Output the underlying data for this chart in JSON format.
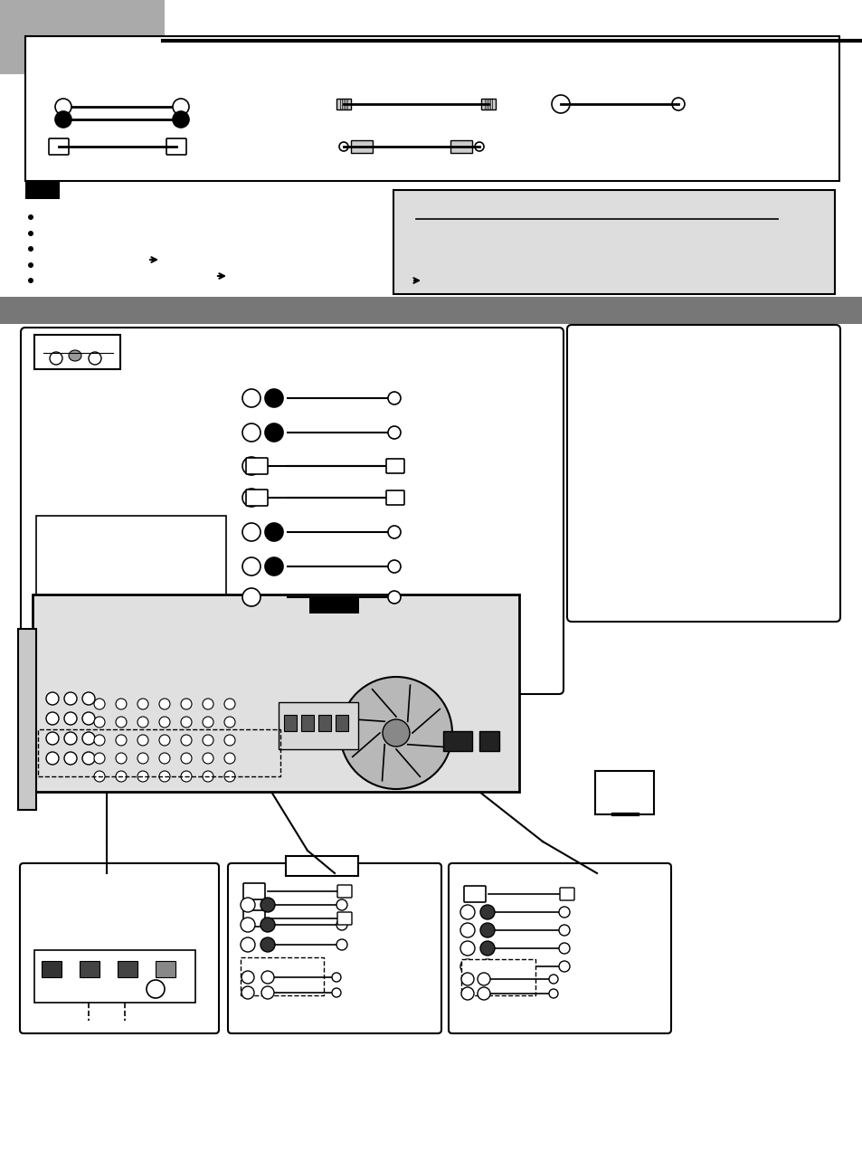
{
  "bg_color": "#ffffff",
  "page_bg": "#ffffff",
  "tab_color": "#aaaaaa",
  "section_bar_color": "#777777",
  "note_box_color": "#dddddd",
  "black": "#000000",
  "white": "#ffffff",
  "gray_light": "#cccccc",
  "gray_medium": "#999999",
  "gray_dark": "#555555",
  "fig_width": 9.54,
  "fig_height": 12.72,
  "dpi": 100
}
